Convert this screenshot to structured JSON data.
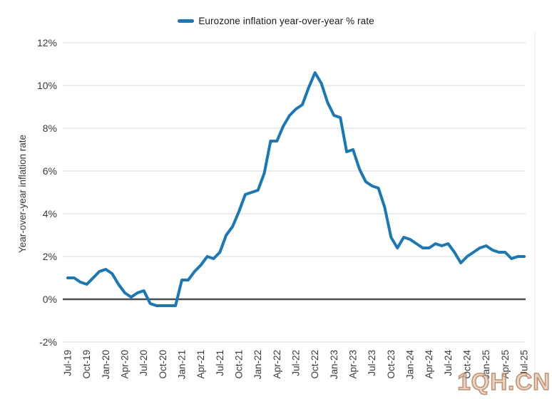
{
  "watermark": "1QH.CN",
  "colors": {
    "series_blue": "#1878b8",
    "gridline": "#e6e6e6",
    "zero_line": "#4d4d4d",
    "tick_text": "#3a3a3a",
    "legend_text": "#1a1a1a",
    "watermark_tan": "#b28160"
  },
  "chart_data": {
    "type": "line",
    "title": "",
    "legend_position": "top-center",
    "xlabel": "",
    "ylabel": "Year-over-year inflation rate",
    "ylim": [
      -2,
      12
    ],
    "grid": "horizontal",
    "zero_line_emphasized": true,
    "ytick_values": [
      12,
      10,
      8,
      6,
      4,
      2,
      0,
      -2
    ],
    "ytick_labels": [
      "12%",
      "10%",
      "8%",
      "6%",
      "4%",
      "2%",
      "0%",
      "-2%"
    ],
    "x_frequency": "monthly",
    "x_range": [
      "Jul-19",
      "Jul-25"
    ],
    "x_tick_every_n_months": 3,
    "x_tick_labels": [
      "Jul-19",
      "Oct-19",
      "Jan-20",
      "Apr-20",
      "Jul-20",
      "Oct-20",
      "Jan-21",
      "Apr-21",
      "Jul-21",
      "Oct-21",
      "Jan-22",
      "Apr-22",
      "Jul-22",
      "Oct-22",
      "Jan-23",
      "Apr-23",
      "Jul-23",
      "Oct-23",
      "Jan-24",
      "Apr-24",
      "Jul-24",
      "Oct-24",
      "Jan-25",
      "Apr-25",
      "Jul-25"
    ],
    "series": [
      {
        "name": "Eurozone inflation year-over-year % rate",
        "color": "#1878b8",
        "values": [
          1.0,
          1.0,
          0.8,
          0.7,
          1.0,
          1.3,
          1.4,
          1.2,
          0.7,
          0.3,
          0.1,
          0.3,
          0.4,
          -0.2,
          -0.3,
          -0.3,
          -0.3,
          -0.3,
          0.9,
          0.9,
          1.3,
          1.6,
          2.0,
          1.9,
          2.2,
          3.0,
          3.4,
          4.1,
          4.9,
          5.0,
          5.1,
          5.9,
          7.4,
          7.4,
          8.1,
          8.6,
          8.9,
          9.1,
          9.9,
          10.6,
          10.1,
          9.2,
          8.6,
          8.5,
          6.9,
          7.0,
          6.1,
          5.5,
          5.3,
          5.2,
          4.3,
          2.9,
          2.4,
          2.9,
          2.8,
          2.6,
          2.4,
          2.4,
          2.6,
          2.5,
          2.6,
          2.2,
          1.7,
          2.0,
          2.2,
          2.4,
          2.5,
          2.3,
          2.2,
          2.2,
          1.9,
          2.0,
          2.0
        ]
      }
    ]
  }
}
